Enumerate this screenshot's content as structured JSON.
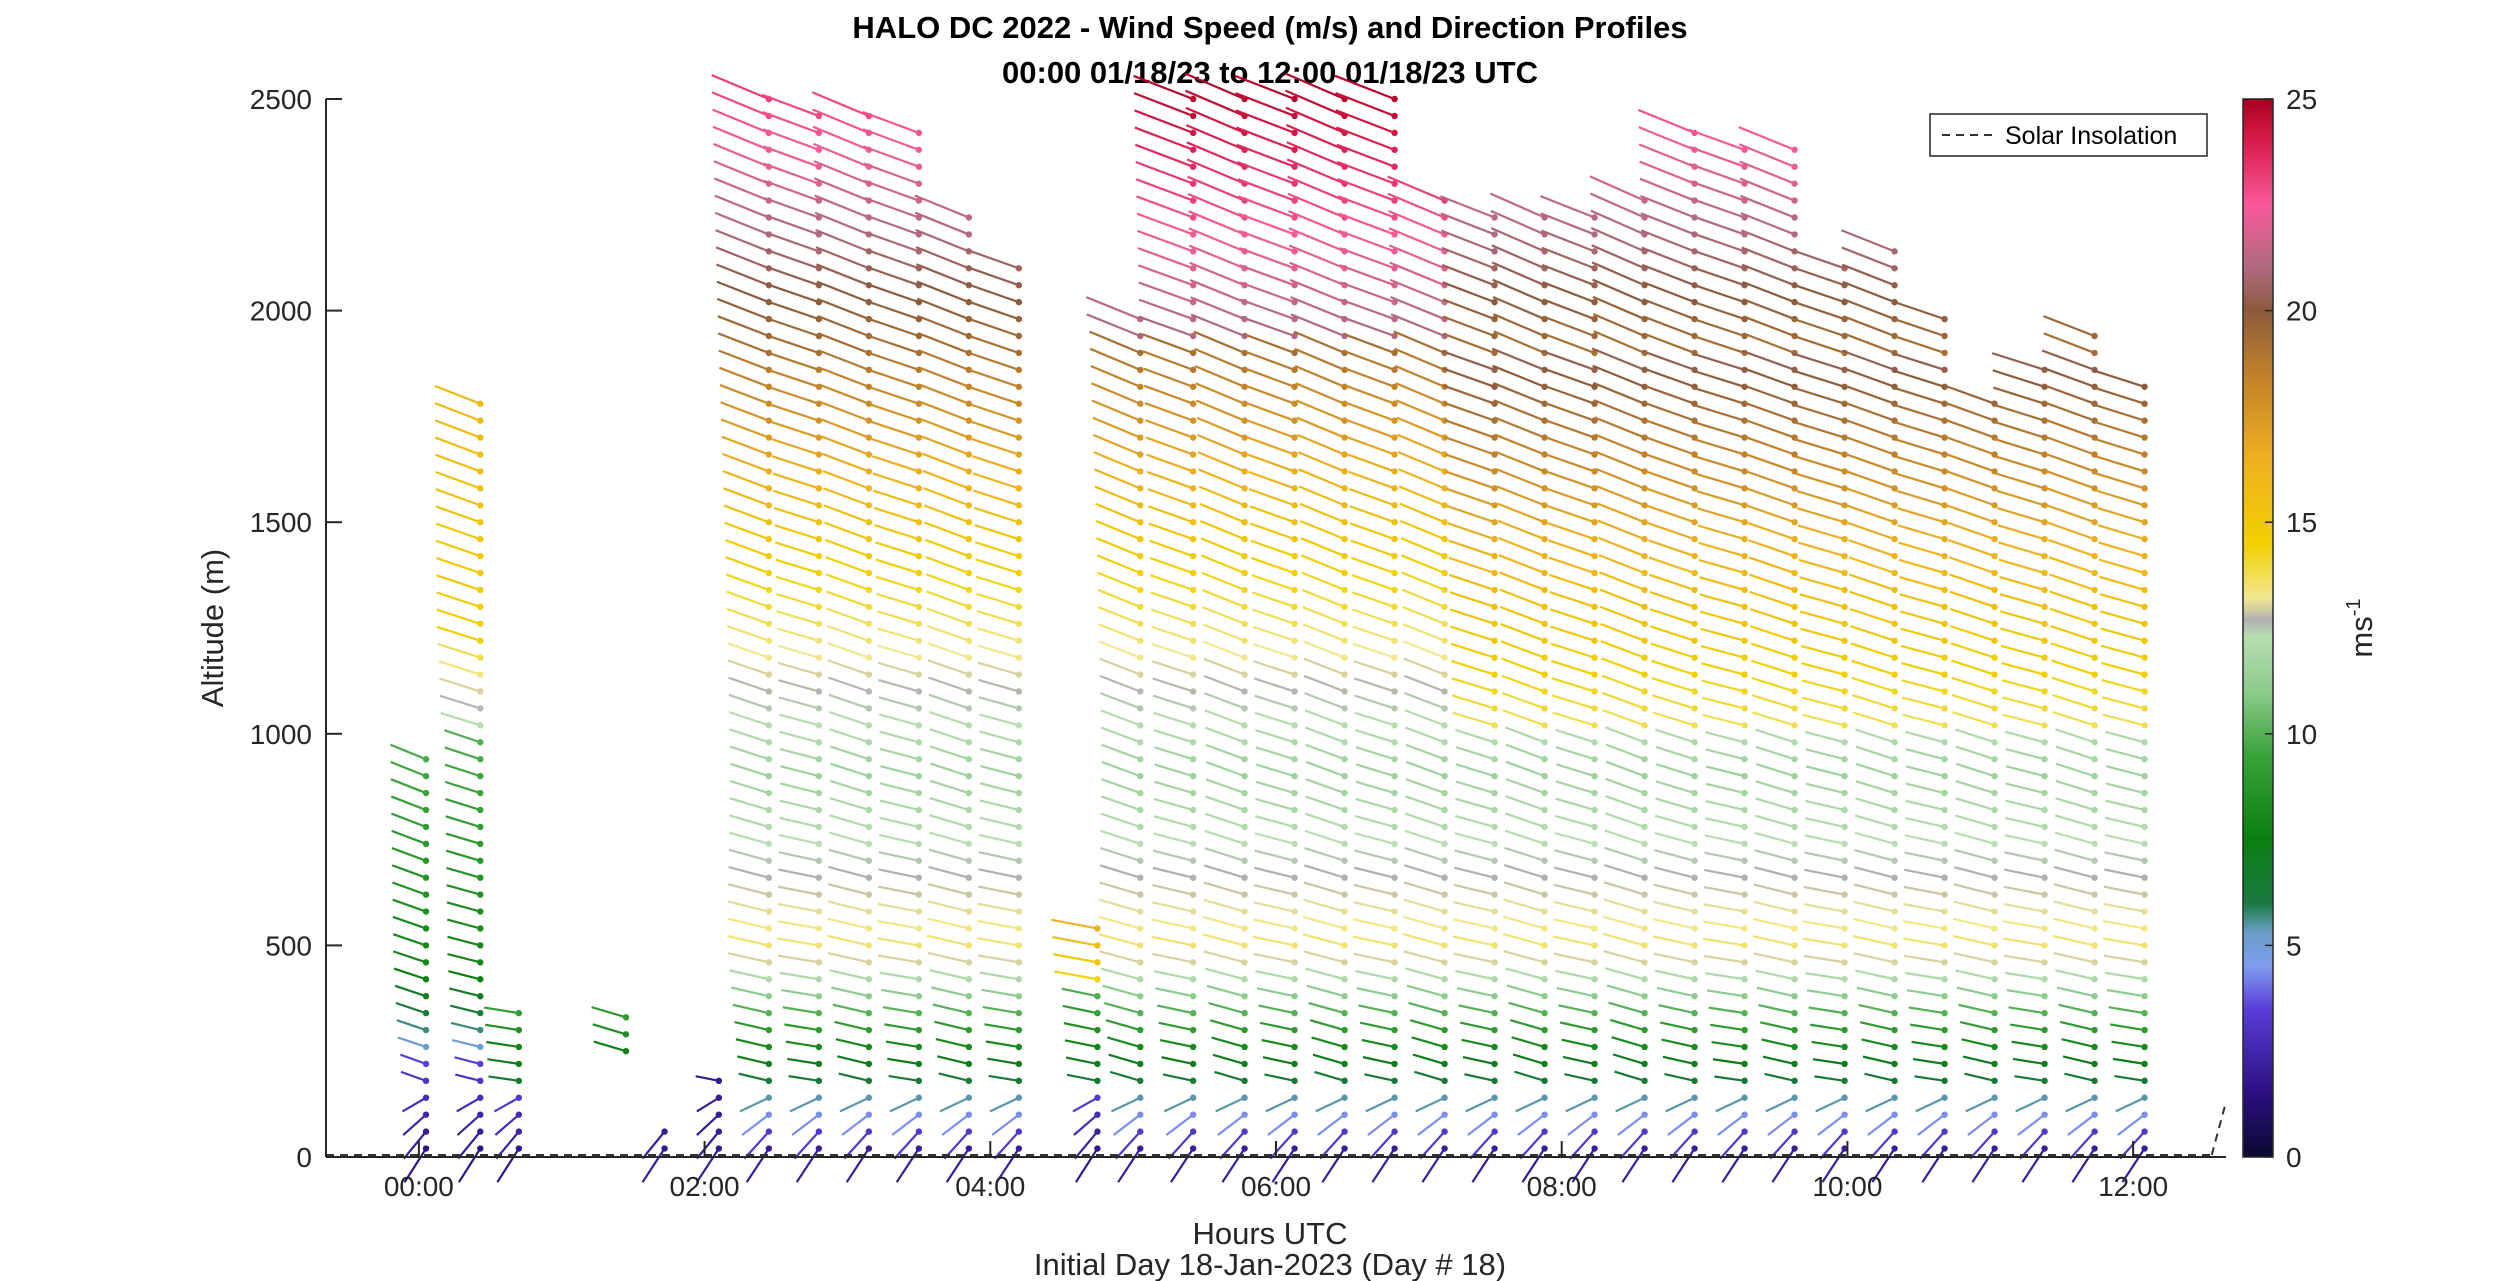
{
  "chart_data": {
    "type": "scatter",
    "title": "HALO DC 2022 - Wind Speed (m/s) and Direction Profiles",
    "subtitle": "00:00 01/18/23 to 12:00 01/18/23  UTC",
    "xlabel": "Hours UTC",
    "xlabel2": "Initial Day 18-Jan-2023 (Day # 18)",
    "ylabel": "Altitude (m)",
    "colorbar_label": "ms",
    "colorbar_label_sup": "-1",
    "xlim": [
      -0.65,
      12.65
    ],
    "ylim": [
      0,
      2500
    ],
    "clim": [
      0,
      25
    ],
    "x_ticks": [
      {
        "value": 0,
        "label": "00:00"
      },
      {
        "value": 2,
        "label": "02:00"
      },
      {
        "value": 4,
        "label": "04:00"
      },
      {
        "value": 6,
        "label": "06:00"
      },
      {
        "value": 8,
        "label": "08:00"
      },
      {
        "value": 10,
        "label": "10:00"
      },
      {
        "value": 12,
        "label": "12:00"
      }
    ],
    "y_ticks": [
      {
        "value": 0,
        "label": "0"
      },
      {
        "value": 500,
        "label": "500"
      },
      {
        "value": 1000,
        "label": "1000"
      },
      {
        "value": 1500,
        "label": "1500"
      },
      {
        "value": 2000,
        "label": "2000"
      },
      {
        "value": 2500,
        "label": "2500"
      }
    ],
    "colorbar_ticks": [
      {
        "value": 0,
        "label": "0"
      },
      {
        "value": 5,
        "label": "5"
      },
      {
        "value": 10,
        "label": "10"
      },
      {
        "value": 15,
        "label": "15"
      },
      {
        "value": 20,
        "label": "20"
      },
      {
        "value": 25,
        "label": "25"
      }
    ],
    "legend": {
      "entry": "Solar Insolation",
      "placement": "top-right"
    },
    "colormap": [
      {
        "v": 0,
        "c": "#0a0a30"
      },
      {
        "v": 1.5,
        "c": "#2a0f80"
      },
      {
        "v": 3.5,
        "c": "#5a3ed8"
      },
      {
        "v": 4.5,
        "c": "#7f9cf0"
      },
      {
        "v": 5.3,
        "c": "#6a9fc8"
      },
      {
        "v": 6,
        "c": "#1a7a40"
      },
      {
        "v": 7.5,
        "c": "#0a7f10"
      },
      {
        "v": 9.5,
        "c": "#3aa33a"
      },
      {
        "v": 11,
        "c": "#8ccc8c"
      },
      {
        "v": 12.3,
        "c": "#b8ddb0"
      },
      {
        "v": 12.7,
        "c": "#b0b0b0"
      },
      {
        "v": 13.2,
        "c": "#f2e890"
      },
      {
        "v": 14.5,
        "c": "#f2d000"
      },
      {
        "v": 16.5,
        "c": "#eeb020"
      },
      {
        "v": 18.5,
        "c": "#c0802a"
      },
      {
        "v": 20,
        "c": "#8b5a3c"
      },
      {
        "v": 21,
        "c": "#b06a80"
      },
      {
        "v": 22.5,
        "c": "#f85a98"
      },
      {
        "v": 24,
        "c": "#d81c4c"
      },
      {
        "v": 25,
        "c": "#a8001c"
      }
    ],
    "profiles": [
      {
        "t": 0.05,
        "min": 20,
        "max": 950,
        "speed_mode": "low"
      },
      {
        "t": 0.43,
        "min": 20,
        "max": 1780,
        "speed_mode": "low"
      },
      {
        "t": 0.7,
        "min": 20,
        "max": 370,
        "speed_mode": "weak"
      },
      {
        "t": 1.45,
        "min": 250,
        "max": 340,
        "speed_mode": "weak"
      },
      {
        "t": 1.72,
        "min": 20,
        "max": 80,
        "speed_mode": "calm"
      },
      {
        "t": 2.1,
        "min": 20,
        "max": 200,
        "speed_mode": "calm"
      },
      {
        "t": 2.45,
        "min": 20,
        "max": 2500,
        "speed_mode": "day"
      },
      {
        "t": 2.8,
        "min": 20,
        "max": 2480,
        "speed_mode": "day"
      },
      {
        "t": 3.15,
        "min": 20,
        "max": 2480,
        "speed_mode": "day"
      },
      {
        "t": 3.5,
        "min": 20,
        "max": 2440,
        "speed_mode": "day"
      },
      {
        "t": 3.85,
        "min": 20,
        "max": 2240,
        "speed_mode": "day"
      },
      {
        "t": 4.2,
        "min": 20,
        "max": 2100,
        "speed_mode": "day"
      },
      {
        "t": 4.75,
        "min": 20,
        "max": 540,
        "speed_mode": "weak"
      },
      {
        "t": 5.05,
        "min": 20,
        "max": 1980,
        "speed_mode": "day"
      },
      {
        "t": 5.42,
        "min": 20,
        "max": 2500,
        "speed_mode": "day"
      },
      {
        "t": 5.78,
        "min": 20,
        "max": 2500,
        "speed_mode": "day"
      },
      {
        "t": 6.13,
        "min": 20,
        "max": 2500,
        "speed_mode": "day"
      },
      {
        "t": 6.48,
        "min": 20,
        "max": 2500,
        "speed_mode": "day"
      },
      {
        "t": 6.83,
        "min": 20,
        "max": 2500,
        "speed_mode": "day"
      },
      {
        "t": 7.18,
        "min": 20,
        "max": 2280,
        "speed_mode": "day"
      },
      {
        "t": 7.53,
        "min": 20,
        "max": 2220,
        "speed_mode": "day"
      },
      {
        "t": 7.88,
        "min": 20,
        "max": 2220,
        "speed_mode": "day"
      },
      {
        "t": 8.23,
        "min": 20,
        "max": 2220,
        "speed_mode": "day"
      },
      {
        "t": 8.58,
        "min": 20,
        "max": 2280,
        "speed_mode": "day"
      },
      {
        "t": 8.93,
        "min": 20,
        "max": 2450,
        "speed_mode": "day"
      },
      {
        "t": 9.28,
        "min": 20,
        "max": 2380,
        "speed_mode": "day"
      },
      {
        "t": 9.63,
        "min": 20,
        "max": 2380,
        "speed_mode": "day"
      },
      {
        "t": 9.98,
        "min": 20,
        "max": 2120,
        "speed_mode": "day"
      },
      {
        "t": 10.33,
        "min": 20,
        "max": 2140,
        "speed_mode": "day"
      },
      {
        "t": 10.68,
        "min": 20,
        "max": 1980,
        "speed_mode": "day"
      },
      {
        "t": 11.03,
        "min": 20,
        "max": 1780,
        "speed_mode": "day"
      },
      {
        "t": 11.38,
        "min": 20,
        "max": 1880,
        "speed_mode": "day"
      },
      {
        "t": 11.73,
        "min": 20,
        "max": 1960,
        "speed_mode": "day"
      },
      {
        "t": 12.08,
        "min": 20,
        "max": 1820,
        "speed_mode": "day"
      }
    ]
  }
}
